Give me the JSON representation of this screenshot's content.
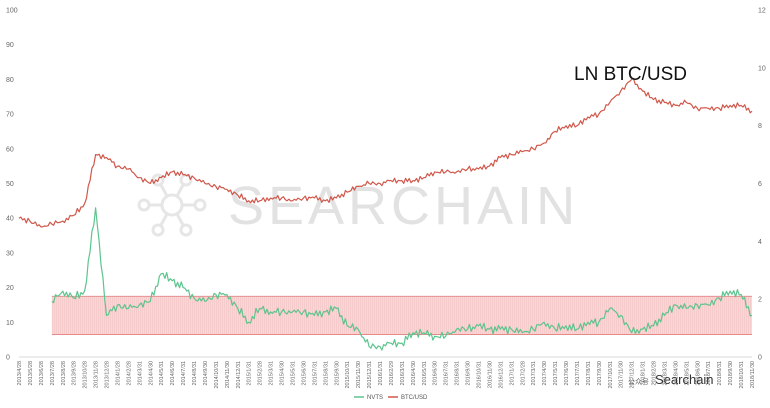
{
  "chart_data": {
    "type": "line",
    "title": "",
    "annotation": "LN BTC/USD",
    "watermark": "SEARCHAIN",
    "watermark_small": "Searchain",
    "watermark_small_prefix": "公众号 ·",
    "y_left": {
      "min": 0,
      "max": 100,
      "ticks": [
        0,
        10,
        20,
        30,
        40,
        50,
        60,
        70,
        80,
        90,
        100
      ]
    },
    "y_right": {
      "min": 0,
      "max": 12,
      "ticks": [
        0,
        2,
        4,
        6,
        8,
        10,
        12
      ]
    },
    "band": {
      "axis": "left",
      "low": 6.5,
      "high": 17.5,
      "color": "#f5c0c0"
    },
    "x": [
      "2013/4/28",
      "2013/5/28",
      "2013/6/28",
      "2013/7/28",
      "2013/8/28",
      "2013/9/28",
      "2013/10/28",
      "2013/11/28",
      "2013/12/28",
      "2014/1/28",
      "2014/2/28",
      "2014/3/31",
      "2014/4/30",
      "2014/5/31",
      "2014/6/30",
      "2014/7/31",
      "2014/8/31",
      "2014/9/30",
      "2014/10/31",
      "2014/11/30",
      "2014/12/31",
      "2015/1/31",
      "2015/2/28",
      "2015/3/31",
      "2015/4/30",
      "2015/5/31",
      "2015/6/30",
      "2015/7/31",
      "2015/8/31",
      "2015/9/30",
      "2015/10/31",
      "2015/11/30",
      "2015/12/31",
      "2016/1/31",
      "2016/2/29",
      "2016/3/31",
      "2016/4/30",
      "2016/5/31",
      "2016/6/30",
      "2016/7/31",
      "2016/8/31",
      "2016/9/30",
      "2016/10/31",
      "2016/11/30",
      "2016/12/31",
      "2017/1/31",
      "2017/2/28",
      "2017/3/31",
      "2017/4/30",
      "2017/5/31",
      "2017/6/30",
      "2017/7/31",
      "2017/8/31",
      "2017/9/30",
      "2017/10/31",
      "2017/11/30",
      "2017/12/31",
      "2018/1/31",
      "2018/2/28",
      "2018/3/31",
      "2018/4/30",
      "2018/5/31",
      "2018/6/30",
      "2018/7/31",
      "2018/8/31",
      "2018/9/30",
      "2018/10/31",
      "2018/11/30"
    ],
    "series": [
      {
        "name": "NVTS",
        "axis": "left",
        "color": "#5cc48d",
        "values": [
          null,
          null,
          null,
          16,
          19,
          17,
          19,
          43,
          12,
          15,
          14,
          15,
          16,
          24,
          22,
          20,
          17,
          16,
          18,
          18,
          14,
          10,
          14,
          13,
          13,
          13,
          13,
          12,
          13,
          14,
          9,
          8,
          3,
          3,
          4,
          4,
          7,
          7,
          6,
          6,
          8,
          8,
          9,
          8,
          8,
          8,
          7,
          8,
          10,
          8,
          9,
          8,
          10,
          10,
          14,
          12,
          7,
          8,
          9,
          12,
          15,
          14,
          15,
          15,
          17,
          19,
          18,
          12
        ]
      },
      {
        "name": "BTC/USD",
        "axis": "right",
        "color": "#d0574a",
        "values": [
          4.8,
          4.7,
          4.5,
          4.6,
          4.7,
          4.9,
          5.3,
          7.0,
          6.9,
          6.6,
          6.5,
          6.2,
          6.0,
          6.2,
          6.4,
          6.3,
          6.2,
          6.0,
          5.9,
          5.8,
          5.6,
          5.4,
          5.4,
          5.5,
          5.5,
          5.4,
          5.5,
          5.5,
          5.4,
          5.5,
          5.7,
          5.9,
          6.0,
          6.0,
          6.1,
          6.1,
          6.1,
          6.2,
          6.4,
          6.4,
          6.4,
          6.5,
          6.5,
          6.6,
          6.9,
          7.0,
          7.1,
          7.2,
          7.4,
          7.8,
          8.0,
          8.0,
          8.3,
          8.4,
          8.8,
          9.2,
          9.6,
          9.2,
          8.9,
          8.8,
          8.7,
          8.8,
          8.6,
          8.6,
          8.6,
          8.7,
          8.7,
          8.5
        ]
      }
    ],
    "legend": {
      "placement": "bottom-center"
    },
    "grid": false
  }
}
